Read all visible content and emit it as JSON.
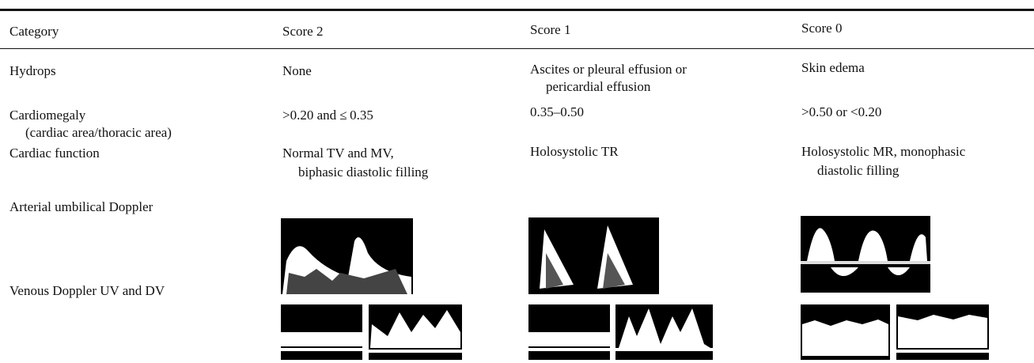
{
  "table": {
    "header": [
      "Category",
      "Score 2",
      "Score 1",
      "Score 0"
    ],
    "rows": [
      [
        [
          "Hydrops"
        ],
        [
          "None"
        ],
        [
          "Ascites or pleural effusion or",
          "pericardial effusion"
        ],
        [
          "Skin edema"
        ]
      ],
      [
        [
          "Cardiomegaly",
          "(cardiac area/thoracic area)"
        ],
        [
          ">0.20 and ≤ 0.35"
        ],
        [
          "0.35–0.50"
        ],
        [
          ">0.50 or <0.20"
        ]
      ],
      [
        [
          "Cardiac function"
        ],
        [
          "Normal TV and MV,",
          "biphasic diastolic filling"
        ],
        [
          "Holosystolic TR"
        ],
        [
          "Holosystolic MR, monophasic",
          "diastolic filling"
        ]
      ],
      [
        [
          "Arterial umbilical Doppler"
        ]
      ],
      [
        [
          "Venous Doppler UV and DV"
        ]
      ]
    ]
  }
}
